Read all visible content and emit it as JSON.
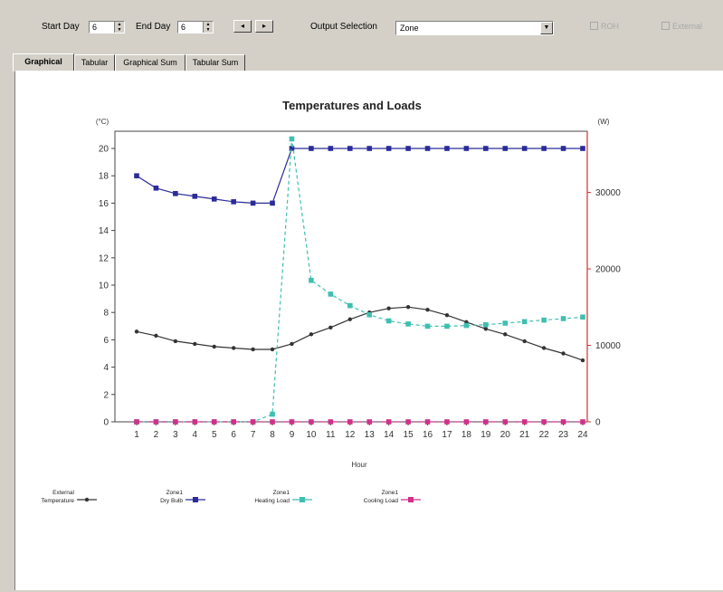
{
  "toolbar": {
    "start_day_label": "Start Day",
    "start_day_value": "6",
    "end_day_label": "End Day",
    "end_day_value": "6",
    "output_selection_label": "Output Selection",
    "output_selection_value": "Zone",
    "checkbox1_label": "ROH",
    "checkbox2_label": "External"
  },
  "tabs": [
    "Graphical",
    "Tabular",
    "Graphical Sum",
    "Tabular Sum"
  ],
  "active_tab": 0,
  "chart_data": {
    "type": "line",
    "title": "Temperatures and Loads",
    "left_unit": "(°C)",
    "right_unit": "(W)",
    "xlabel": "Hour",
    "x": [
      1,
      2,
      3,
      4,
      5,
      6,
      7,
      8,
      9,
      10,
      11,
      12,
      13,
      14,
      15,
      16,
      17,
      18,
      19,
      20,
      21,
      22,
      23,
      24
    ],
    "ylim_left": [
      0,
      20
    ],
    "yticks_left": [
      0,
      2,
      4,
      6,
      8,
      10,
      12,
      14,
      16,
      18,
      20
    ],
    "ylim_right": [
      0,
      38000
    ],
    "yticks_right": [
      0,
      10000,
      20000,
      30000
    ],
    "grid": false,
    "legend_position": "bottom-left",
    "series": [
      {
        "name": "External Temperature",
        "axis": "left",
        "color": "#333333",
        "marker": "dot",
        "style": "solid",
        "values": [
          6.6,
          6.3,
          5.9,
          5.7,
          5.5,
          5.4,
          5.3,
          5.3,
          5.7,
          6.4,
          6.9,
          7.5,
          8.0,
          8.3,
          8.4,
          8.2,
          7.8,
          7.3,
          6.8,
          6.4,
          5.9,
          5.4,
          5.0,
          4.5
        ]
      },
      {
        "name": "Zone1 Dry Bulb",
        "axis": "left",
        "color": "#2b2b9a",
        "marker": "square",
        "style": "solid",
        "values": [
          18.0,
          17.1,
          16.7,
          16.5,
          16.3,
          16.1,
          16.0,
          16.0,
          20.0,
          20.0,
          20.0,
          20.0,
          20.0,
          20.0,
          20.0,
          20.0,
          20.0,
          20.0,
          20.0,
          20.0,
          20.0,
          20.0,
          20.0,
          20.0
        ]
      },
      {
        "name": "Zone1 Heating Load",
        "axis": "right",
        "color": "#3fbfb0",
        "marker": "square",
        "style": "dashed",
        "values": [
          0,
          0,
          0,
          0,
          0,
          0,
          0,
          1000,
          37000,
          18500,
          16700,
          15200,
          14000,
          13200,
          12800,
          12500,
          12500,
          12600,
          12700,
          12900,
          13100,
          13300,
          13500,
          13700
        ]
      },
      {
        "name": "Zone1 Cooling Load",
        "axis": "right",
        "color": "#d0308a",
        "marker": "square",
        "style": "dashdot",
        "values": [
          0,
          0,
          0,
          0,
          0,
          0,
          0,
          0,
          0,
          0,
          0,
          0,
          0,
          0,
          0,
          0,
          0,
          0,
          0,
          0,
          0,
          0,
          0,
          0
        ]
      }
    ],
    "legend": [
      {
        "line1": "External",
        "line2": "Temperature",
        "color": "#333333",
        "marker": "dot"
      },
      {
        "line1": "Zone1",
        "line2": "Dry Bulb",
        "color": "#2b2b9a",
        "marker": "square"
      },
      {
        "line1": "Zone1",
        "line2": "Heating Load",
        "color": "#3fbfb0",
        "marker": "square"
      },
      {
        "line1": "Zone1",
        "line2": "Cooling Load",
        "color": "#d0308a",
        "marker": "square"
      }
    ]
  }
}
